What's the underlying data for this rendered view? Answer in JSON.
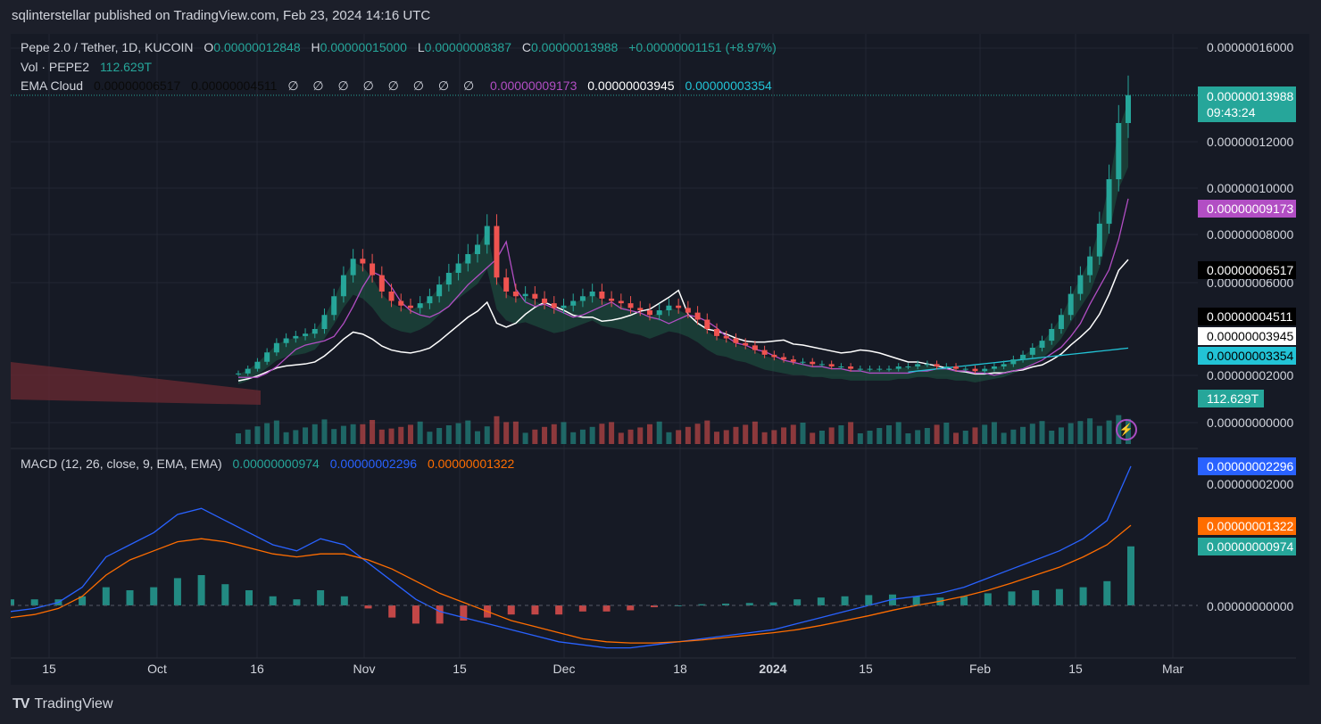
{
  "publisher": "sqlinterstellar published on TradingView.com, Feb 23, 2024 14:16 UTC",
  "brand": "TradingView",
  "legend": {
    "symbol": "Pepe 2.0 / Tether, 1D, KUCOIN",
    "o_label": "O",
    "open": "0.00000012848",
    "h_label": "H",
    "high": "0.00000015000",
    "l_label": "L",
    "low": "0.00000008387",
    "c_label": "C",
    "close": "0.00000013988",
    "change": "+0.00000001151 (+8.97%)",
    "vol_label": "Vol · PEPE2",
    "vol_value": "112.629T",
    "ema_label": "EMA Cloud",
    "ema_v1": "0.00000006517",
    "ema_v2": "0.00000004511",
    "ema_empty": "∅ ∅ ∅ ∅ ∅ ∅ ∅ ∅",
    "ema_v3": "0.00000009173",
    "ema_v4": "0.00000003945",
    "ema_v5": "0.00000003354",
    "macd_label": "MACD (12, 26, close, 9, EMA, EMA)",
    "macd_hist": "0.00000000974",
    "macd_line": "0.00000002296",
    "macd_signal": "0.00000001322"
  },
  "tags": {
    "last_price": "0.00000013988",
    "countdown": "09:43:24",
    "ema_fast": "0.00000009173",
    "ema_a": "0.00000006517",
    "ema_b": "0.00000004511",
    "ema_c": "0.00000003945",
    "ema_d": "0.00000003354",
    "volume": "112.629T",
    "macd_line": "0.00000002296",
    "macd_signal": "0.00000001322",
    "macd_hist": "0.00000000974"
  },
  "colors": {
    "up": "#26a69a",
    "down": "#ef5350",
    "ema_fast": "#b24ec4",
    "ema_white": "#ffffff",
    "ema_cyan": "#22c3d6",
    "macd_line": "#2962ff",
    "macd_signal": "#ff6d00"
  },
  "chart_data": {
    "type": "candlestick",
    "y_ticks": [
      "0.00000016000",
      "0.00000012000",
      "0.00000010000",
      "0.00000008000",
      "0.00000006000",
      "0.00000002000",
      "0.00000000000"
    ],
    "macd_y_ticks": [
      "0.00000002000",
      "0.00000000000"
    ],
    "x_ticks": [
      "15",
      "Oct",
      "16",
      "Nov",
      "15",
      "Dec",
      "18",
      "2024",
      "15",
      "Feb",
      "15",
      "Mar"
    ],
    "x_ticks_bold": [
      false,
      false,
      false,
      false,
      false,
      false,
      false,
      true,
      false,
      false,
      false,
      false
    ],
    "price_ylim": [
      0,
      1.7e-07
    ],
    "close_series": [
      2.1,
      2.3,
      2.6,
      3.0,
      3.4,
      3.6,
      3.7,
      3.8,
      4.0,
      4.6,
      5.4,
      6.3,
      7.0,
      6.8,
      6.3,
      5.6,
      5.2,
      5.0,
      4.9,
      5.1,
      5.4,
      5.9,
      6.4,
      6.8,
      7.2,
      7.6,
      8.4,
      6.2,
      5.6,
      5.4,
      5.5,
      5.3,
      5.1,
      4.9,
      5.0,
      5.2,
      5.4,
      5.6,
      5.3,
      5.2,
      5.1,
      4.9,
      4.8,
      4.6,
      4.8,
      5.0,
      4.9,
      4.7,
      4.4,
      4.0,
      3.7,
      3.6,
      3.4,
      3.3,
      3.1,
      2.9,
      2.8,
      2.7,
      2.6,
      2.6,
      2.5,
      2.5,
      2.4,
      2.4,
      2.3,
      2.3,
      2.3,
      2.3,
      2.3,
      2.4,
      2.4,
      2.5,
      2.5,
      2.4,
      2.4,
      2.3,
      2.3,
      2.2,
      2.3,
      2.4,
      2.5,
      2.7,
      2.9,
      3.2,
      3.5,
      4.0,
      4.6,
      5.5,
      6.3,
      7.1,
      8.5,
      10.4,
      12.8,
      13.99
    ],
    "macd_series": [
      -0.1,
      -0.05,
      0.05,
      0.3,
      0.8,
      1.0,
      1.2,
      1.5,
      1.6,
      1.4,
      1.2,
      1.0,
      0.9,
      1.1,
      1.0,
      0.7,
      0.4,
      0.1,
      -0.1,
      -0.2,
      -0.3,
      -0.4,
      -0.5,
      -0.6,
      -0.65,
      -0.7,
      -0.7,
      -0.65,
      -0.6,
      -0.55,
      -0.5,
      -0.45,
      -0.4,
      -0.3,
      -0.2,
      -0.1,
      0.0,
      0.1,
      0.15,
      0.2,
      0.3,
      0.45,
      0.6,
      0.75,
      0.9,
      1.1,
      1.4,
      2.296
    ],
    "macd_signal_series": [
      -0.2,
      -0.15,
      -0.05,
      0.15,
      0.5,
      0.75,
      0.9,
      1.05,
      1.1,
      1.05,
      0.95,
      0.85,
      0.8,
      0.85,
      0.85,
      0.75,
      0.6,
      0.4,
      0.2,
      0.05,
      -0.1,
      -0.25,
      -0.35,
      -0.45,
      -0.55,
      -0.6,
      -0.62,
      -0.62,
      -0.6,
      -0.57,
      -0.53,
      -0.49,
      -0.45,
      -0.4,
      -0.33,
      -0.25,
      -0.17,
      -0.08,
      0.0,
      0.07,
      0.15,
      0.25,
      0.37,
      0.5,
      0.63,
      0.8,
      1.0,
      1.322
    ]
  }
}
